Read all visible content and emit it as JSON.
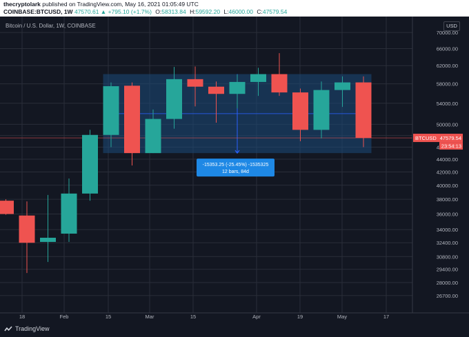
{
  "header": {
    "publisher": "thecryptolark",
    "published_text": "published on TradingView.com, May 16, 2021 01:05:49 UTC",
    "symbol": "COINBASE:BTCUSD, 1W",
    "last": "47570.61",
    "change": "▲ +795.10 (+1.7%)",
    "o_label": "O:",
    "o_value": "58313.84",
    "h_label": "H:",
    "h_value": "59592.20",
    "l_label": "L:",
    "l_value": "46000.00",
    "c_label": "C:",
    "c_value": "47579.54"
  },
  "chart": {
    "title": "Bitcoin / U.S. Dollar, 1W, COINBASE",
    "currency": "USD",
    "colors": {
      "up": "#26a69a",
      "down": "#ef5350",
      "range_fill": "#1c4a7a",
      "range_line": "#2962ff",
      "price_tag": "#ef5350",
      "background": "#131722",
      "grid": "#2a2e39",
      "axis_text": "#b2b5be"
    },
    "price_tag": {
      "symbol_label": "BTCUSD",
      "price": "47579.54",
      "countdown": "23:54:13"
    },
    "measure": {
      "line1": "-15353.25 (-25.45%) -1535325",
      "line2": "12 bars, 84d"
    }
  },
  "footer": {
    "brand": "TradingView",
    "logo_icon": "tradingview-logo-icon"
  },
  "chart_data": {
    "type": "candlestick",
    "title": "Bitcoin / U.S. Dollar, 1W, COINBASE",
    "x_tick_labels": [
      "18",
      "Feb",
      "15",
      "Mar",
      "15",
      "Apr",
      "19",
      "May",
      "17"
    ],
    "y_tick_labels": [
      "26700.00",
      "28000.00",
      "29400.00",
      "30800.00",
      "32400.00",
      "34000.00",
      "36000.00",
      "38000.00",
      "40000.00",
      "42000.00",
      "44000.00",
      "46000.00",
      "48000.00",
      "50000.00",
      "54000.00",
      "58000.00",
      "62000.00",
      "66000.00",
      "70000.00"
    ],
    "y_ticks": [
      26700,
      28000,
      29400,
      30800,
      32400,
      34000,
      36000,
      38000,
      40000,
      42000,
      44000,
      46000,
      48000,
      50000,
      54000,
      58000,
      62000,
      66000,
      70000
    ],
    "y_scale": "log",
    "ylim": [
      25700,
      72000
    ],
    "candles": [
      {
        "o": 37800,
        "h": 38000,
        "l": 35900,
        "c": 36000
      },
      {
        "o": 35800,
        "h": 37700,
        "l": 29000,
        "c": 32400
      },
      {
        "o": 32500,
        "h": 38600,
        "l": 30200,
        "c": 33000
      },
      {
        "o": 33500,
        "h": 41000,
        "l": 32500,
        "c": 38800
      },
      {
        "o": 38800,
        "h": 49000,
        "l": 37800,
        "c": 48100
      },
      {
        "o": 48100,
        "h": 58300,
        "l": 46000,
        "c": 57500
      },
      {
        "o": 57600,
        "h": 58300,
        "l": 43000,
        "c": 45000
      },
      {
        "o": 45000,
        "h": 52800,
        "l": 45000,
        "c": 51000
      },
      {
        "o": 51000,
        "h": 61700,
        "l": 49200,
        "c": 59000
      },
      {
        "o": 59000,
        "h": 61800,
        "l": 53400,
        "c": 57400
      },
      {
        "o": 57400,
        "h": 58500,
        "l": 50300,
        "c": 55900
      },
      {
        "o": 55900,
        "h": 60000,
        "l": 53000,
        "c": 58400
      },
      {
        "o": 58400,
        "h": 61500,
        "l": 55500,
        "c": 60100
      },
      {
        "o": 60100,
        "h": 64900,
        "l": 55500,
        "c": 56200
      },
      {
        "o": 56200,
        "h": 57000,
        "l": 47000,
        "c": 49000
      },
      {
        "o": 49000,
        "h": 58500,
        "l": 47500,
        "c": 56700
      },
      {
        "o": 56700,
        "h": 59600,
        "l": 53300,
        "c": 58300
      },
      {
        "o": 58300,
        "h": 59600,
        "l": 46000,
        "c": 47580
      }
    ],
    "range_measure": {
      "from_price": 60100,
      "to_price": 45000,
      "change": -15353.25,
      "change_percent": -25.45,
      "bars": 12,
      "days": 84
    }
  }
}
